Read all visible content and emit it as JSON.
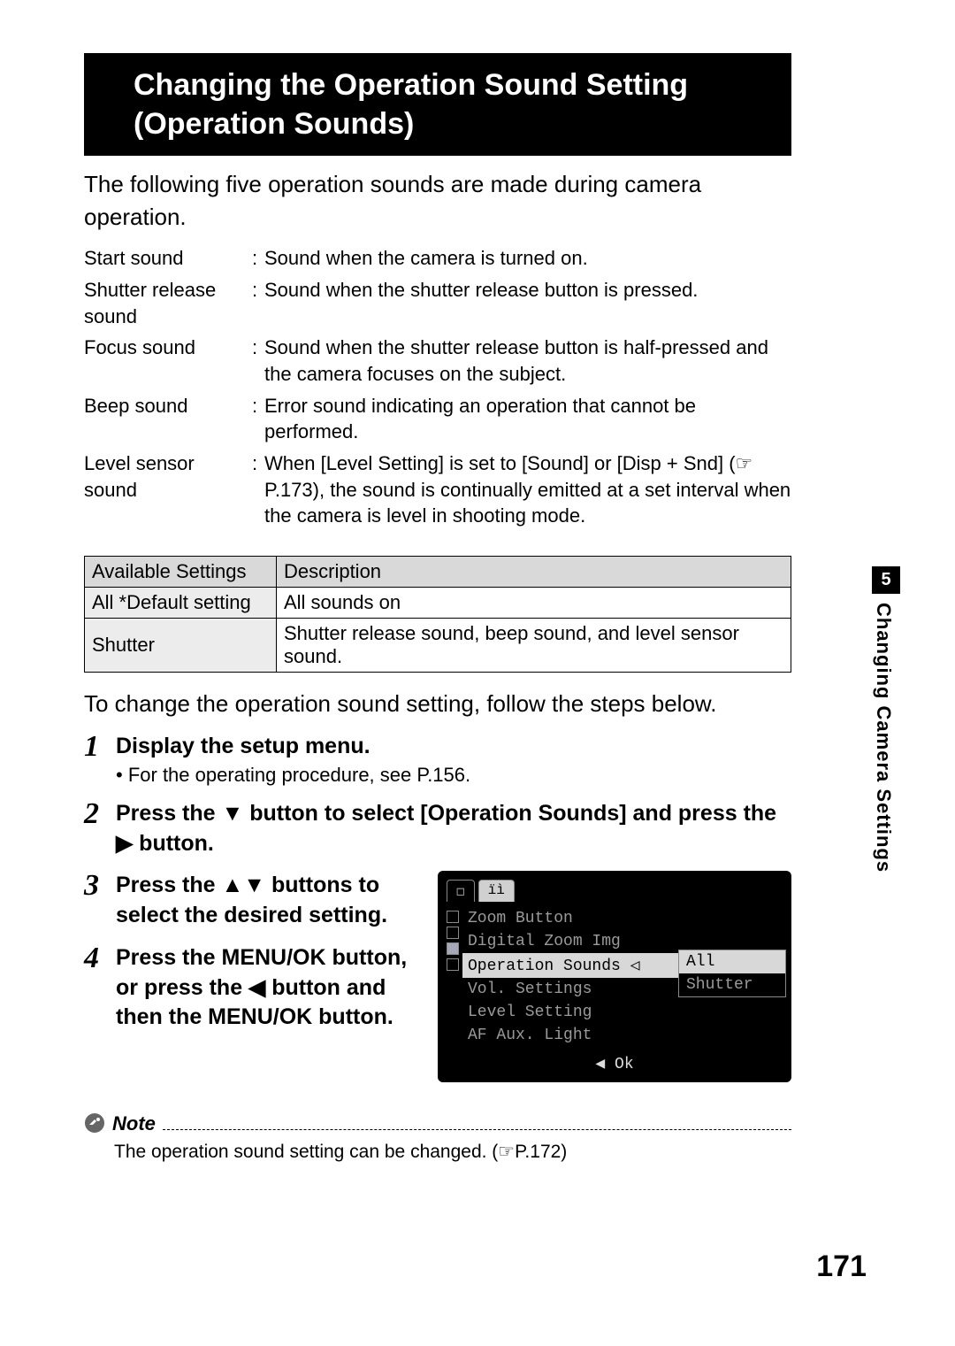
{
  "title": "Changing the Operation Sound Setting (Operation Sounds)",
  "intro": "The following five operation sounds are made during camera operation.",
  "defs": [
    {
      "term": "Start sound",
      "desc": "Sound when the camera is turned on."
    },
    {
      "term": "Shutter release sound",
      "desc": "Sound when the shutter release button is pressed."
    },
    {
      "term": "Focus sound",
      "desc": "Sound when the shutter release button is half-pressed and the camera focuses on the subject."
    },
    {
      "term": "Beep sound",
      "desc": "Error sound indicating an operation that cannot be performed."
    },
    {
      "term": "Level sensor sound",
      "desc": "When [Level Setting] is set to [Sound] or [Disp + Snd] (☞P.173), the sound is continually emitted at a set interval when the camera is level in shooting mode."
    }
  ],
  "table": {
    "headers": [
      "Available Settings",
      "Description"
    ],
    "rows": [
      [
        "All *Default setting",
        "All sounds on"
      ],
      [
        "Shutter",
        "Shutter release sound, beep sound, and level sensor sound."
      ]
    ]
  },
  "lead": "To change the operation sound setting, follow the steps below.",
  "steps": {
    "s1_title": "Display the setup menu.",
    "s1_sub": "For the operating procedure, see P.156.",
    "s2_title": "Press the ▼ button to select [Operation Sounds] and press the ▶ button.",
    "s3_title": "Press the ▲▼ buttons to select the desired setting.",
    "s4_title": "Press the MENU/OK button, or press the ◀ button and then the MENU/OK button."
  },
  "screen": {
    "tabs": [
      "▢",
      "✦"
    ],
    "menu": [
      "Zoom Button",
      "Digital Zoom Img",
      "Operation Sounds",
      "Vol. Settings",
      "Level Setting",
      "AF Aux. Light"
    ],
    "selected_index": 2,
    "dropdown": [
      "All",
      "Shutter"
    ],
    "dropdown_sel": 0,
    "footer": "◀ Ok"
  },
  "note": {
    "label": "Note",
    "text": "The operation sound setting can be changed. (☞P.172)"
  },
  "side": {
    "chapter": "5",
    "label": "Changing Camera Settings"
  },
  "page_number": "171",
  "colors": {
    "title_bg": "#000000",
    "title_fg": "#ffffff",
    "table_header_bg": "#d9d9d9",
    "table_col0_bg": "#ececec",
    "screen_bg": "#000000",
    "screen_sel_bg": "#d8d8d8"
  }
}
